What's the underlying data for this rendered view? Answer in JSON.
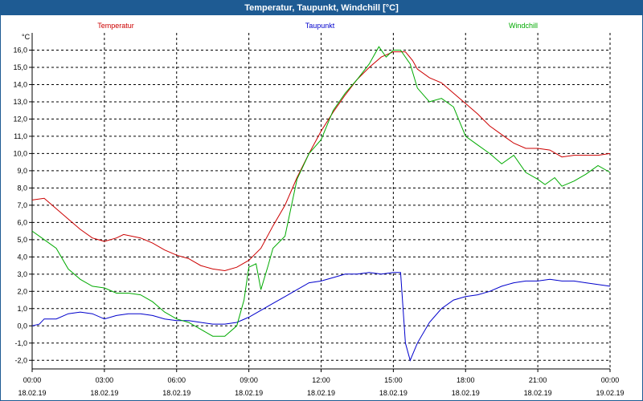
{
  "window": {
    "title": "Temperatur, Taupunkt, Windchill [°C]"
  },
  "chart_data": {
    "type": "line",
    "title": "Temperatur, Taupunkt, Windchill [°C]",
    "ylabel": "°C",
    "xlabel": "",
    "ylim": [
      -2.5,
      17.0
    ],
    "xlim": [
      0,
      24
    ],
    "grid": true,
    "legend_placement": "top",
    "y_ticks": [
      "-2,0",
      "-1,0",
      "0,0",
      "1,0",
      "2,0",
      "3,0",
      "4,0",
      "5,0",
      "6,0",
      "7,0",
      "8,0",
      "9,0",
      "10,0",
      "11,0",
      "12,0",
      "13,0",
      "14,0",
      "15,0",
      "16,0"
    ],
    "y_tick_values": [
      -2,
      -1,
      0,
      1,
      2,
      3,
      4,
      5,
      6,
      7,
      8,
      9,
      10,
      11,
      12,
      13,
      14,
      15,
      16
    ],
    "x_ticks": [
      {
        "time": "00:00",
        "date": "18.02.19",
        "hour": 0
      },
      {
        "time": "03:00",
        "date": "18.02.19",
        "hour": 3
      },
      {
        "time": "06:00",
        "date": "18.02.19",
        "hour": 6
      },
      {
        "time": "09:00",
        "date": "18.02.19",
        "hour": 9
      },
      {
        "time": "12:00",
        "date": "18.02.19",
        "hour": 12
      },
      {
        "time": "15:00",
        "date": "18.02.19",
        "hour": 15
      },
      {
        "time": "18:00",
        "date": "18.02.19",
        "hour": 18
      },
      {
        "time": "21:00",
        "date": "18.02.19",
        "hour": 21
      },
      {
        "time": "00:00",
        "date": "19.02.19",
        "hour": 24
      }
    ],
    "series": [
      {
        "name": "Temperatur",
        "color": "#cc0000",
        "points": [
          [
            0,
            7.3
          ],
          [
            0.5,
            7.4
          ],
          [
            1,
            6.8
          ],
          [
            1.5,
            6.2
          ],
          [
            2,
            5.6
          ],
          [
            2.5,
            5.1
          ],
          [
            3,
            4.9
          ],
          [
            3.5,
            5.1
          ],
          [
            3.8,
            5.3
          ],
          [
            4.5,
            5.1
          ],
          [
            5,
            4.8
          ],
          [
            5.5,
            4.4
          ],
          [
            6,
            4.1
          ],
          [
            6.5,
            3.9
          ],
          [
            7,
            3.5
          ],
          [
            7.5,
            3.3
          ],
          [
            8,
            3.2
          ],
          [
            8.5,
            3.4
          ],
          [
            9,
            3.8
          ],
          [
            9.5,
            4.5
          ],
          [
            10,
            5.8
          ],
          [
            10.5,
            7.0
          ],
          [
            11,
            8.6
          ],
          [
            11.5,
            10.0
          ],
          [
            12,
            11.3
          ],
          [
            12.5,
            12.4
          ],
          [
            13,
            13.4
          ],
          [
            13.5,
            14.3
          ],
          [
            14,
            15.0
          ],
          [
            14.5,
            15.6
          ],
          [
            15,
            15.9
          ],
          [
            15.5,
            15.9
          ],
          [
            15.8,
            15.4
          ],
          [
            16,
            14.9
          ],
          [
            16.5,
            14.4
          ],
          [
            17,
            14.1
          ],
          [
            17.5,
            13.5
          ],
          [
            18,
            12.9
          ],
          [
            18.5,
            12.3
          ],
          [
            19,
            11.6
          ],
          [
            19.5,
            11.1
          ],
          [
            20,
            10.6
          ],
          [
            20.5,
            10.3
          ],
          [
            21,
            10.3
          ],
          [
            21.5,
            10.2
          ],
          [
            22,
            9.8
          ],
          [
            22.5,
            9.9
          ],
          [
            23,
            9.9
          ],
          [
            23.5,
            9.9
          ],
          [
            24,
            10.0
          ]
        ]
      },
      {
        "name": "Taupunkt",
        "color": "#0000cc",
        "points": [
          [
            0,
            0.0
          ],
          [
            0.3,
            0.1
          ],
          [
            0.5,
            0.4
          ],
          [
            1,
            0.4
          ],
          [
            1.5,
            0.7
          ],
          [
            2,
            0.8
          ],
          [
            2.5,
            0.7
          ],
          [
            3,
            0.4
          ],
          [
            3.5,
            0.6
          ],
          [
            4,
            0.7
          ],
          [
            4.5,
            0.7
          ],
          [
            5,
            0.6
          ],
          [
            5.5,
            0.4
          ],
          [
            6,
            0.3
          ],
          [
            6.5,
            0.3
          ],
          [
            7,
            0.2
          ],
          [
            7.5,
            0.1
          ],
          [
            8,
            0.1
          ],
          [
            8.5,
            0.2
          ],
          [
            9,
            0.5
          ],
          [
            9.5,
            0.9
          ],
          [
            10,
            1.3
          ],
          [
            10.5,
            1.7
          ],
          [
            11,
            2.1
          ],
          [
            11.5,
            2.5
          ],
          [
            12,
            2.6
          ],
          [
            12.5,
            2.8
          ],
          [
            13,
            3.0
          ],
          [
            13.5,
            3.0
          ],
          [
            14,
            3.1
          ],
          [
            14.5,
            3.0
          ],
          [
            15,
            3.1
          ],
          [
            15.3,
            3.1
          ],
          [
            15.5,
            -1.0
          ],
          [
            15.7,
            -2.0
          ],
          [
            16,
            -1.0
          ],
          [
            16.5,
            0.2
          ],
          [
            17,
            1.0
          ],
          [
            17.5,
            1.5
          ],
          [
            18,
            1.7
          ],
          [
            18.5,
            1.8
          ],
          [
            19,
            2.0
          ],
          [
            19.5,
            2.3
          ],
          [
            20,
            2.5
          ],
          [
            20.5,
            2.6
          ],
          [
            21,
            2.6
          ],
          [
            21.5,
            2.7
          ],
          [
            22,
            2.6
          ],
          [
            22.5,
            2.6
          ],
          [
            23,
            2.5
          ],
          [
            23.5,
            2.4
          ],
          [
            24,
            2.3
          ]
        ]
      },
      {
        "name": "Windchill",
        "color": "#00aa00",
        "points": [
          [
            0,
            5.5
          ],
          [
            0.5,
            5.0
          ],
          [
            1,
            4.5
          ],
          [
            1.5,
            3.3
          ],
          [
            2,
            2.7
          ],
          [
            2.5,
            2.3
          ],
          [
            3,
            2.2
          ],
          [
            3.5,
            1.9
          ],
          [
            4,
            1.9
          ],
          [
            4.5,
            1.8
          ],
          [
            5,
            1.4
          ],
          [
            5.5,
            0.8
          ],
          [
            6,
            0.4
          ],
          [
            6.5,
            0.2
          ],
          [
            7,
            -0.2
          ],
          [
            7.5,
            -0.6
          ],
          [
            8,
            -0.6
          ],
          [
            8.5,
            0.0
          ],
          [
            8.8,
            1.5
          ],
          [
            9,
            3.4
          ],
          [
            9.3,
            3.6
          ],
          [
            9.5,
            2.1
          ],
          [
            9.8,
            3.5
          ],
          [
            10,
            4.5
          ],
          [
            10.5,
            5.2
          ],
          [
            11,
            8.5
          ],
          [
            11.5,
            10.0
          ],
          [
            12,
            10.8
          ],
          [
            12.5,
            12.5
          ],
          [
            13,
            13.5
          ],
          [
            13.5,
            14.3
          ],
          [
            14,
            15.2
          ],
          [
            14.4,
            16.2
          ],
          [
            14.7,
            15.6
          ],
          [
            15,
            16.0
          ],
          [
            15.3,
            16.0
          ],
          [
            15.7,
            15.2
          ],
          [
            16,
            13.8
          ],
          [
            16.5,
            13.0
          ],
          [
            17,
            13.2
          ],
          [
            17.5,
            12.7
          ],
          [
            18,
            11.0
          ],
          [
            18.5,
            10.5
          ],
          [
            19,
            10.0
          ],
          [
            19.5,
            9.4
          ],
          [
            20,
            9.9
          ],
          [
            20.5,
            8.9
          ],
          [
            21,
            8.5
          ],
          [
            21.3,
            8.2
          ],
          [
            21.7,
            8.6
          ],
          [
            22,
            8.1
          ],
          [
            22.5,
            8.4
          ],
          [
            23,
            8.8
          ],
          [
            23.5,
            9.3
          ],
          [
            24,
            8.9
          ]
        ]
      }
    ]
  }
}
